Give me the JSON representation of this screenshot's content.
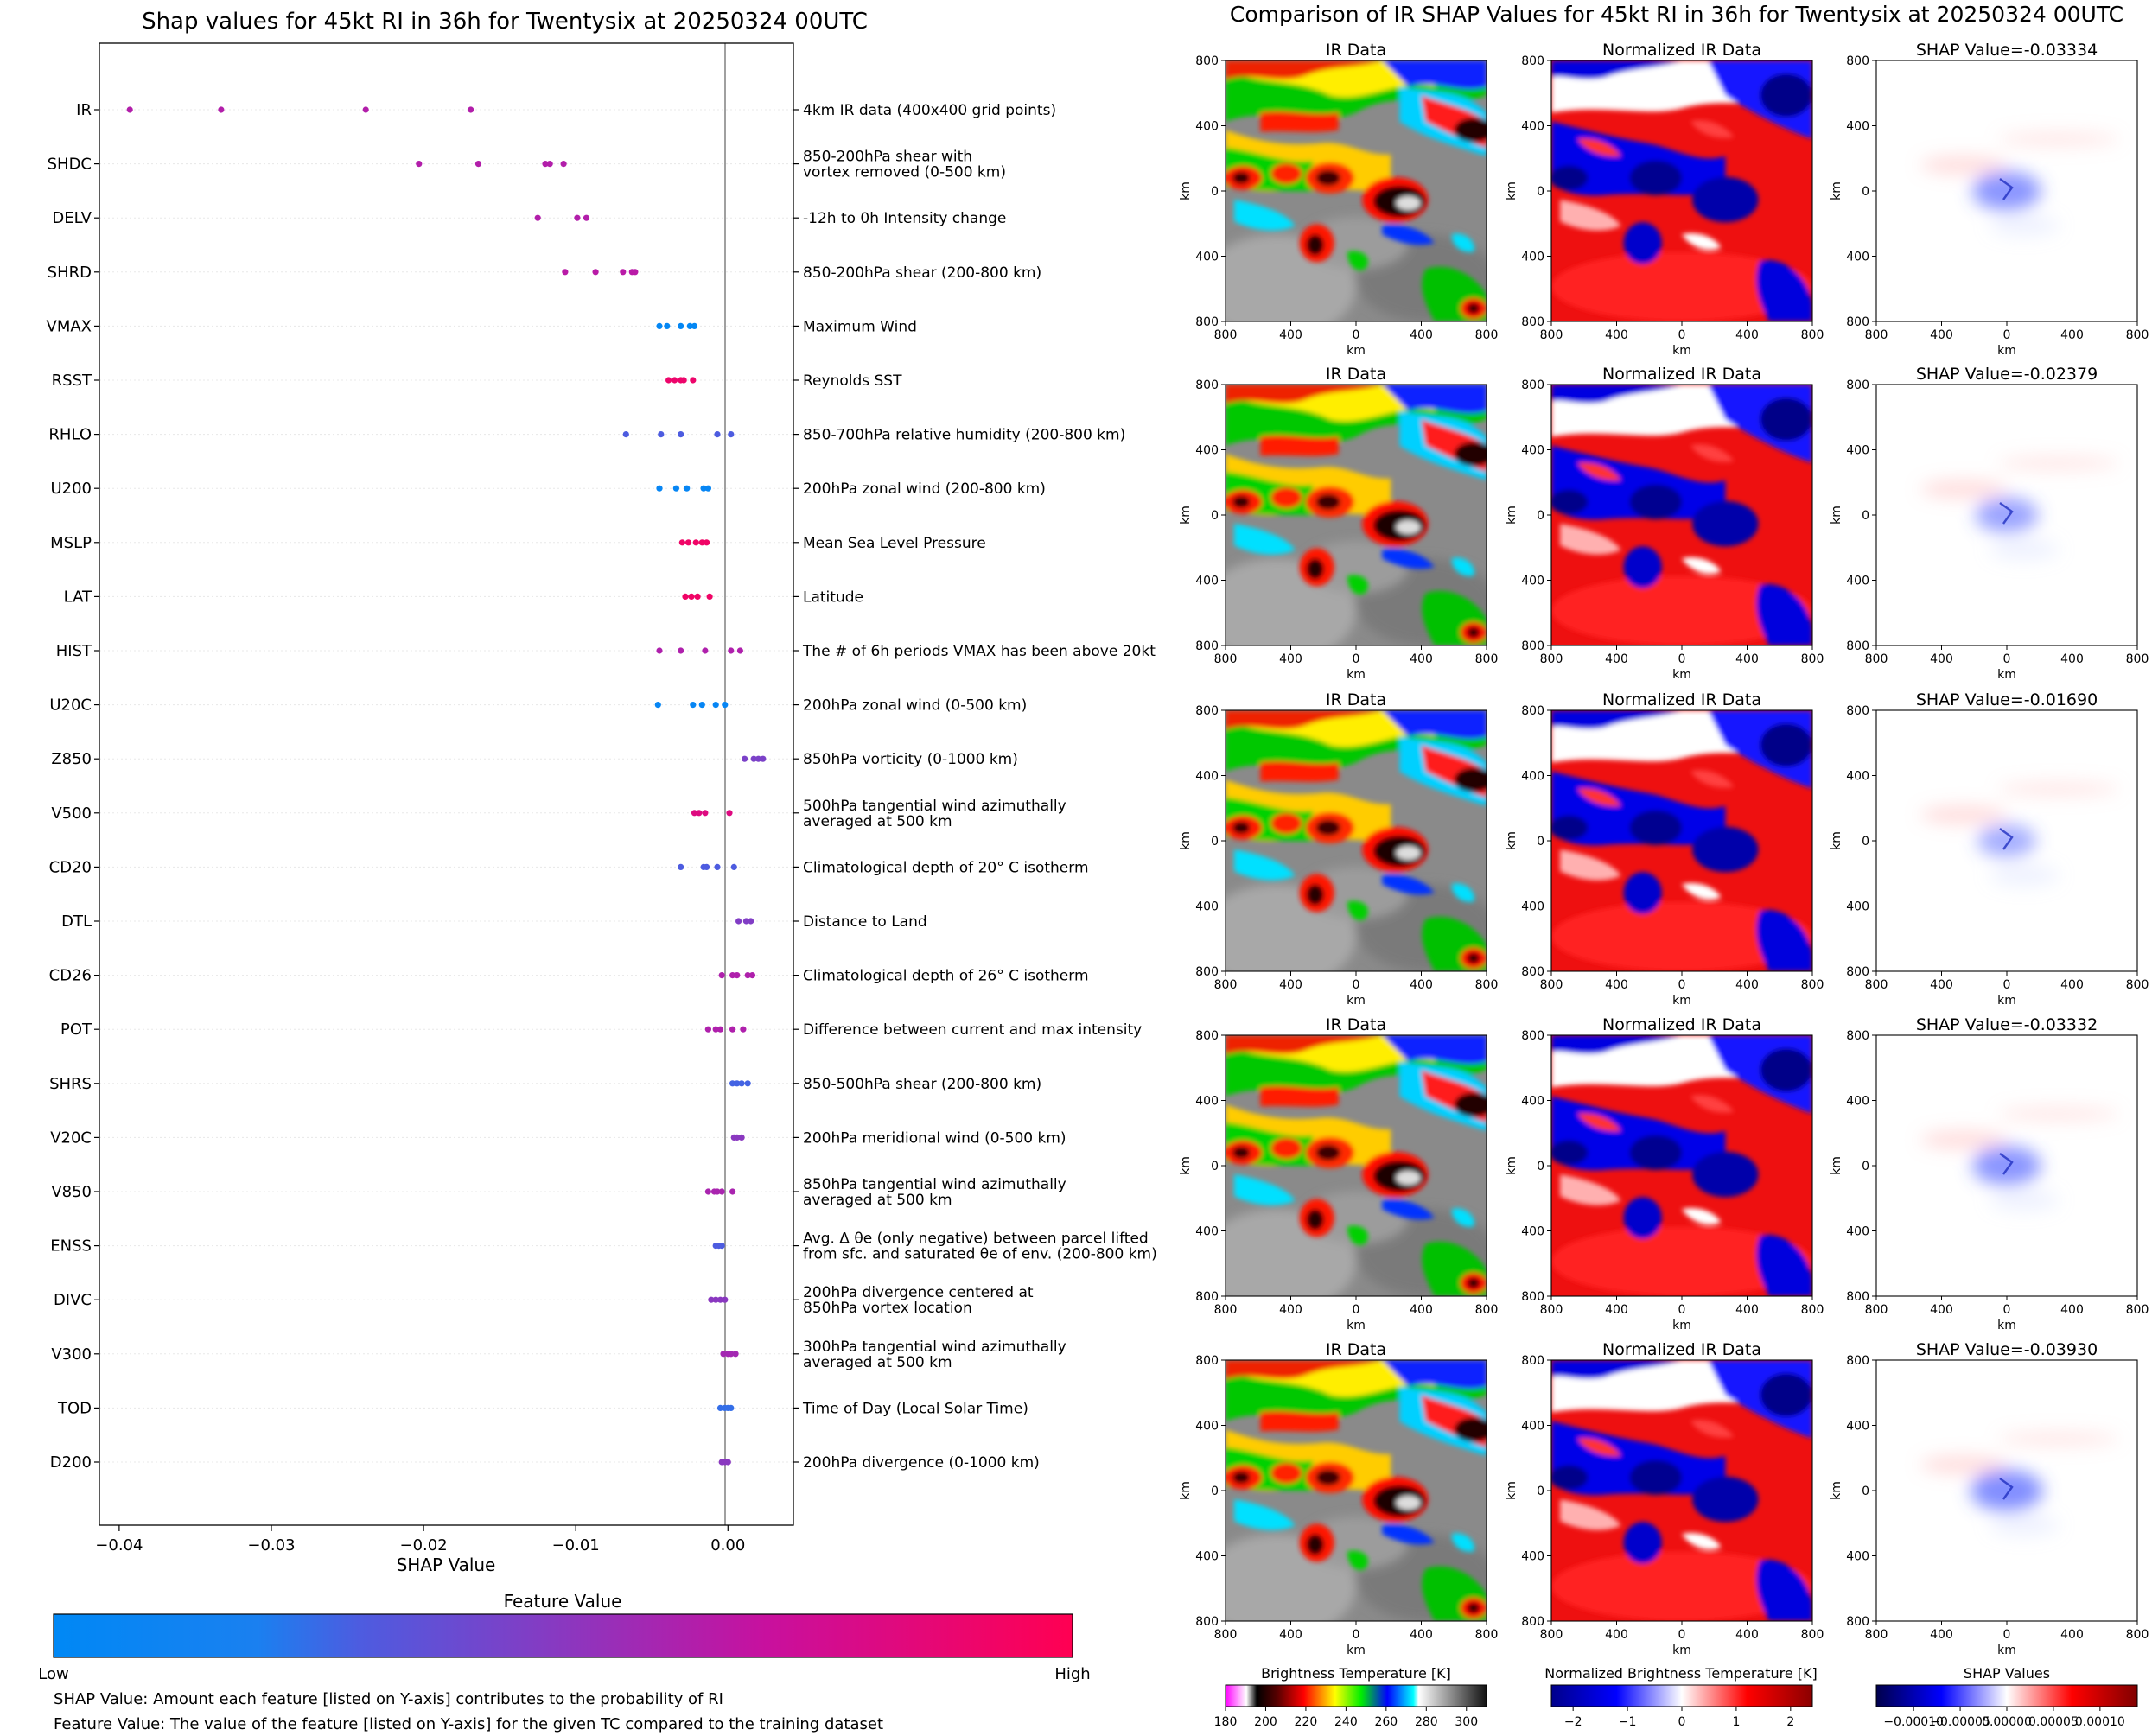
{
  "left_title": "Shap values for 45kt RI in 36h for Twentysix at 20250324 00UTC",
  "right_title": "Comparison of IR SHAP Values for 45kt RI in 36h for Twentysix at 20250324 00UTC",
  "colors": {
    "feature_low": "#0088f5",
    "feature_mid_blue": "#4a5ce0",
    "feature_mid_purple": "#8a3cc0",
    "feature_mid_magenta": "#c8109a",
    "feature_high": "#ff0052",
    "zero_line": "#888888",
    "gridline": "#e8e8e8"
  },
  "chart_data": [
    {
      "type": "scatter",
      "title": "Shap values for 45kt RI in 36h for Twentysix at 20250324 00UTC",
      "xlabel": "SHAP Value",
      "xlim": [
        -0.0413,
        0.0043
      ],
      "xticks": [
        {
          "value": -0.04,
          "label": "−0.04"
        },
        {
          "value": -0.03,
          "label": "−0.03"
        },
        {
          "value": -0.02,
          "label": "−0.02"
        },
        {
          "value": -0.01,
          "label": "−0.01"
        },
        {
          "value": 0.0,
          "label": "0.00"
        }
      ],
      "colorbar": {
        "title": "Feature Value",
        "low_label": "Low",
        "high_label": "High"
      },
      "notes": [
        "SHAP Value: Amount each feature [listed on Y-axis] contributes to the probability of RI",
        "Feature Value: The value of the feature [listed on Y-axis] for the given TC compared to the training dataset"
      ],
      "features": [
        {
          "name": "IR",
          "desc": [
            "4km IR data (400x400 grid points)"
          ],
          "feature_value": 0.63,
          "shap": [
            -0.0393,
            -0.0333,
            -0.0238,
            -0.0169
          ]
        },
        {
          "name": "SHDC",
          "desc": [
            "850-200hPa shear with",
            "vortex removed (0-500 km)"
          ],
          "feature_value": 0.63,
          "shap": [
            -0.0203,
            -0.0164,
            -0.012,
            -0.0117,
            -0.0108
          ]
        },
        {
          "name": "DELV",
          "desc": [
            "-12h to 0h Intensity change"
          ],
          "feature_value": 0.63,
          "shap": [
            -0.0125,
            -0.0099,
            -0.0093
          ]
        },
        {
          "name": "SHRD",
          "desc": [
            "850-200hPa shear (200-800 km)"
          ],
          "feature_value": 0.65,
          "shap": [
            -0.0107,
            -0.0087,
            -0.0069,
            -0.0063,
            -0.0061
          ]
        },
        {
          "name": "VMAX",
          "desc": [
            "Maximum Wind"
          ],
          "feature_value": 0.03,
          "shap": [
            -0.0045,
            -0.004,
            -0.0031,
            -0.0025,
            -0.0022
          ]
        },
        {
          "name": "RSST",
          "desc": [
            "Reynolds SST"
          ],
          "feature_value": 0.9,
          "shap": [
            -0.0039,
            -0.0035,
            -0.0031,
            -0.0029,
            -0.0023
          ]
        },
        {
          "name": "RHLO",
          "desc": [
            "850-700hPa relative humidity (200-800 km)"
          ],
          "feature_value": 0.3,
          "shap": [
            -0.0067,
            -0.0044,
            -0.0031,
            -0.0007,
            0.0002
          ]
        },
        {
          "name": "U200",
          "desc": [
            "200hPa zonal wind (200-800 km)"
          ],
          "feature_value": 0.05,
          "shap": [
            -0.0045,
            -0.0034,
            -0.0027,
            -0.0016,
            -0.0013
          ]
        },
        {
          "name": "MSLP",
          "desc": [
            "Mean Sea Level Pressure"
          ],
          "feature_value": 0.92,
          "shap": [
            -0.003,
            -0.0026,
            -0.0021,
            -0.0017,
            -0.0014
          ]
        },
        {
          "name": "LAT",
          "desc": [
            "Latitude"
          ],
          "feature_value": 0.92,
          "shap": [
            -0.0028,
            -0.0024,
            -0.002,
            -0.0012
          ]
        },
        {
          "name": "HIST",
          "desc": [
            "The # of 6h periods VMAX has been above 20kt"
          ],
          "feature_value": 0.62,
          "shap": [
            -0.0045,
            -0.0031,
            -0.0015,
            0.0002,
            0.0008
          ]
        },
        {
          "name": "U20C",
          "desc": [
            "200hPa zonal wind (0-500 km)"
          ],
          "feature_value": 0.05,
          "shap": [
            -0.0046,
            -0.0023,
            -0.0017,
            -0.0008,
            -0.0002
          ]
        },
        {
          "name": "Z850",
          "desc": [
            "850hPa vorticity (0-1000 km)"
          ],
          "feature_value": 0.45,
          "shap": [
            0.0011,
            0.0017,
            0.002,
            0.0023
          ]
        },
        {
          "name": "V500",
          "desc": [
            "500hPa tangential wind azimuthally",
            "averaged at 500 km"
          ],
          "feature_value": 0.82,
          "shap": [
            -0.0022,
            -0.0019,
            -0.0015,
            0.0001
          ]
        },
        {
          "name": "CD20",
          "desc": [
            "Climatological depth of 20° C isotherm"
          ],
          "feature_value": 0.3,
          "shap": [
            -0.0031,
            -0.0016,
            -0.0014,
            -0.0007,
            0.0004
          ]
        },
        {
          "name": "DTL",
          "desc": [
            "Distance to Land"
          ],
          "feature_value": 0.47,
          "shap": [
            0.0007,
            0.0012,
            0.0015
          ]
        },
        {
          "name": "CD26",
          "desc": [
            "Climatological depth of 26° C isotherm"
          ],
          "feature_value": 0.62,
          "shap": [
            -0.0004,
            0.0003,
            0.0006,
            0.0013,
            0.0016
          ]
        },
        {
          "name": "POT",
          "desc": [
            "Difference between current and max intensity"
          ],
          "feature_value": 0.62,
          "shap": [
            -0.0013,
            -0.0008,
            -0.0005,
            0.0003,
            0.001
          ]
        },
        {
          "name": "SHRS",
          "desc": [
            "850-500hPa shear (200-800 km)"
          ],
          "feature_value": 0.28,
          "shap": [
            0.0003,
            0.0006,
            0.0009,
            0.0013
          ]
        },
        {
          "name": "V20C",
          "desc": [
            "200hPa meridional wind (0-500 km)"
          ],
          "feature_value": 0.5,
          "shap": [
            0.0004,
            0.0006,
            0.0009
          ]
        },
        {
          "name": "V850",
          "desc": [
            "850hPa tangential wind azimuthally",
            "averaged at 500 km"
          ],
          "feature_value": 0.6,
          "shap": [
            -0.0013,
            -0.0009,
            -0.0007,
            -0.0004,
            0.0003
          ]
        },
        {
          "name": "ENSS",
          "desc": [
            "Avg. Δ θe (only negative) between parcel lifted",
            "from sfc. and saturated θe of env. (200-800 km)"
          ],
          "feature_value": 0.3,
          "shap": [
            -0.0008,
            -0.0006,
            -0.0004
          ]
        },
        {
          "name": "DIVC",
          "desc": [
            "200hPa divergence centered at",
            "850hPa vortex location"
          ],
          "feature_value": 0.5,
          "shap": [
            -0.0011,
            -0.0008,
            -0.0005,
            -0.0002
          ]
        },
        {
          "name": "V300",
          "desc": [
            "300hPa tangential wind azimuthally",
            "averaged at 500 km"
          ],
          "feature_value": 0.58,
          "shap": [
            -0.0003,
            0.0,
            0.0002,
            0.0005
          ]
        },
        {
          "name": "TOD",
          "desc": [
            "Time of Day (Local Solar Time)"
          ],
          "feature_value": 0.25,
          "shap": [
            -0.0005,
            -0.0002,
            0.0,
            0.0002
          ]
        },
        {
          "name": "D200",
          "desc": [
            "200hPa divergence (0-1000 km)"
          ],
          "feature_value": 0.5,
          "shap": [
            -0.0004,
            -0.0002,
            0.0
          ]
        }
      ]
    },
    {
      "type": "heatmap",
      "title": "Comparison of IR SHAP Values for 45kt RI in 36h for Twentysix at 20250324 00UTC",
      "panel_titles": [
        "IR Data",
        "Normalized IR Data"
      ],
      "shap_prefix": "SHAP Value=",
      "shap_values": [
        "-0.03334",
        "-0.02379",
        "-0.01690",
        "-0.03332",
        "-0.03930"
      ],
      "axis_label": "km",
      "ticks": [
        "800",
        "400",
        "0",
        "400",
        "800"
      ],
      "colorbars": [
        {
          "title": "Brightness Temperature [K]",
          "ticks": [
            "180",
            "200",
            "220",
            "240",
            "260",
            "280",
            "300"
          ],
          "range": [
            180,
            310
          ]
        },
        {
          "title": "Normalized Brightness Temperature [K]",
          "ticks": [
            "−2",
            "−1",
            "0",
            "1",
            "2"
          ],
          "range": [
            -2.4,
            2.4
          ]
        },
        {
          "title": "SHAP Values",
          "ticks": [
            "−0.00010",
            "−0.00005",
            "0.00000",
            "0.00005",
            "0.00010"
          ],
          "range": [
            -0.00014,
            0.00014
          ]
        }
      ]
    }
  ]
}
